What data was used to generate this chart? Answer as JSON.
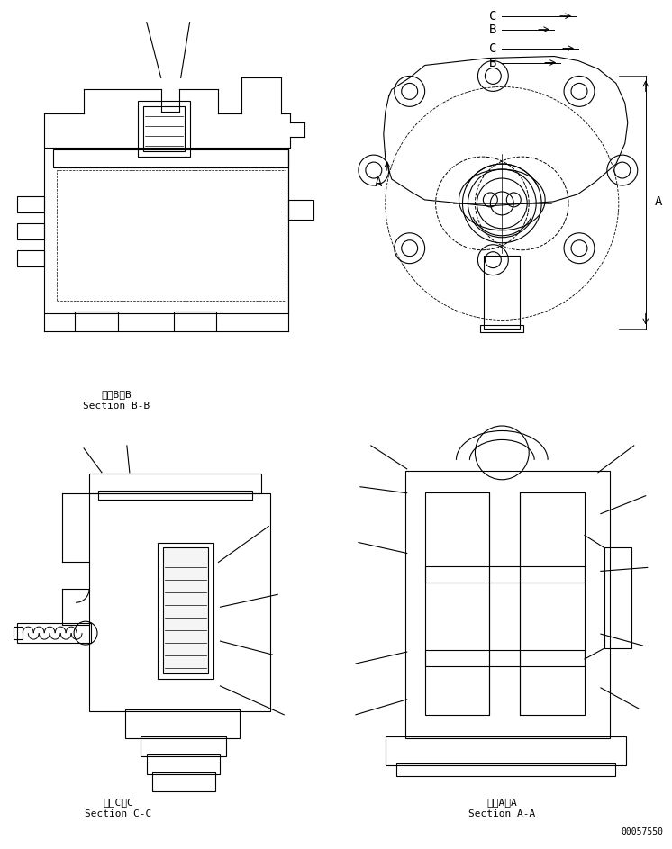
{
  "bg_color": "#ffffff",
  "line_color": "#000000",
  "fig_width": 7.46,
  "fig_height": 9.43,
  "dpi": 100,
  "label_bb_1": "断面B－B",
  "label_bb_2": "Section B-B",
  "label_cc_1": "断面C－C",
  "label_cc_2": "Section C-C",
  "label_aa_1": "断面A－A",
  "label_aa_2": "Section A-A",
  "part_number": "00057550",
  "font_size_label": 8,
  "font_size_part": 7,
  "font_size_dim": 10
}
